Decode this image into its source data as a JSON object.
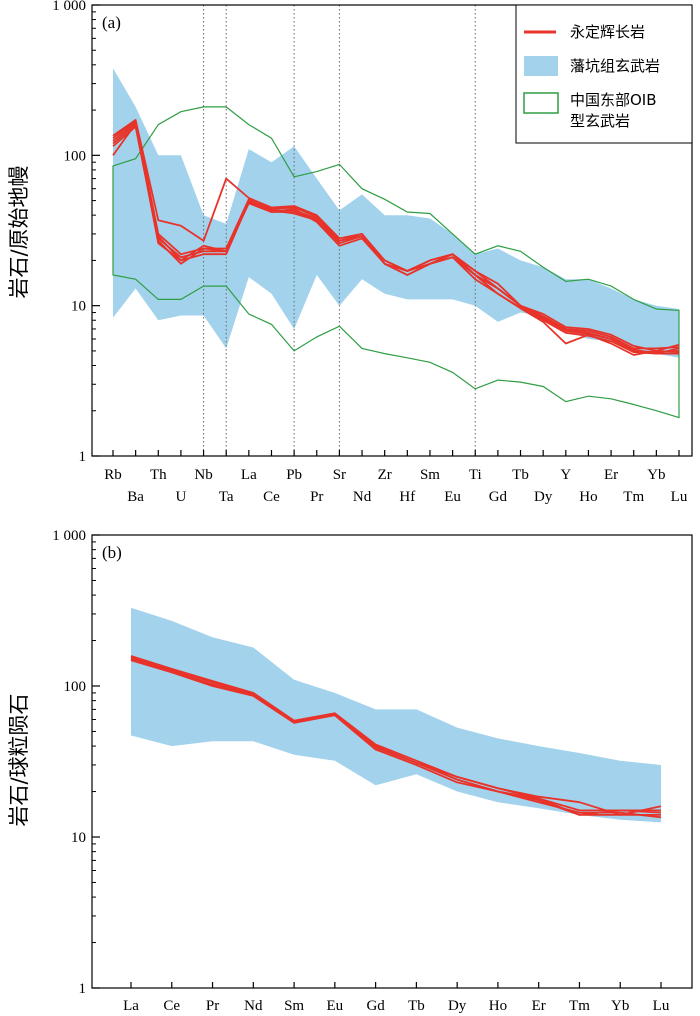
{
  "colors": {
    "gabbro": "#e8332a",
    "basalt": "#a3d3ec",
    "oib": "#2f9e44",
    "axis": "#000000",
    "grid": "#666666"
  },
  "legend": {
    "gabbro": "永定辉长岩",
    "basalt": "藩坑组玄武岩",
    "oib_line1": "中国东部OIB",
    "oib_line2": "型玄武岩"
  },
  "chart_data": [
    {
      "type": "line",
      "panel_label": "(a)",
      "ylabel": "岩石/原始地幔",
      "yscale": "log",
      "ylim": [
        1,
        1000
      ],
      "ytick_labels": [
        "1",
        "10",
        "100",
        "1 000"
      ],
      "categories": [
        "Rb",
        "Ba",
        "Th",
        "U",
        "Nb",
        "Ta",
        "La",
        "Ce",
        "Pb",
        "Pr",
        "Sr",
        "Nd",
        "Zr",
        "Hf",
        "Sm",
        "Eu",
        "Ti",
        "Gd",
        "Tb",
        "Dy",
        "Y",
        "Ho",
        "Er",
        "Tm",
        "Yb",
        "Lu"
      ],
      "dotted_reference_lines": [
        "Nb",
        "Ta",
        "Pb",
        "Sr",
        "Ti"
      ],
      "series": [
        {
          "name": "永定辉长岩",
          "kind": "lines",
          "lines": [
            [
              125,
              165,
              28,
              21,
              23,
              23,
              50,
              44,
              45,
              39,
              27,
              29,
              20,
              17,
              19,
              22,
              16,
              13,
              10,
              8.5,
              7,
              6.8,
              6.2,
              5.2,
              5.2,
              5.3
            ],
            [
              130,
              170,
              30,
              22,
              24,
              24,
              51,
              43,
              43,
              38,
              27,
              30,
              19,
              17,
              20,
              22,
              17,
              13,
              10,
              8.2,
              6.8,
              6.5,
              6,
              5,
              4.9,
              5
            ],
            [
              120,
              160,
              26,
              20,
              22,
              22,
              49,
              42,
              42,
              37,
              26,
              29,
              19,
              16,
              19,
              21,
              16,
              12,
              9.7,
              8,
              6.6,
              6.3,
              5.8,
              4.9,
              4.8,
              4.8
            ],
            [
              135,
              172,
              37,
              34,
              27,
              70,
              52,
              45,
              46,
              40,
              28,
              30,
              20,
              17,
              20,
              22,
              17,
              14,
              10,
              8.8,
              7.2,
              7,
              6.4,
              5.4,
              5,
              5.5
            ],
            [
              115,
              155,
              27,
              19,
              24,
              23,
              48,
              42,
              44,
              36,
              25,
              28,
              19,
              16,
              19,
              21,
              15,
              12,
              9.6,
              7.8,
              5.6,
              6.4,
              5.6,
              4.7,
              5,
              4.9
            ],
            [
              100,
              162,
              29,
              20,
              25,
              23,
              50,
              43,
              41,
              37,
              27,
              29,
              19,
              17,
              19,
              22,
              16,
              13,
              10,
              8.3,
              6.9,
              6.6,
              6,
              5.1,
              4.8,
              5.2
            ]
          ]
        },
        {
          "name": "藩坑组玄武岩",
          "kind": "band",
          "upper": [
            380,
            210,
            100,
            100,
            40,
            35,
            110,
            90,
            115,
            70,
            43,
            55,
            40,
            40,
            38,
            30,
            22,
            24,
            20,
            18,
            15,
            15,
            13,
            11,
            10,
            9.5
          ],
          "lower": [
            8.3,
            13,
            8,
            8.6,
            8.6,
            5.2,
            15.5,
            12,
            7,
            16,
            10,
            15,
            12,
            11,
            11,
            11,
            10,
            7.8,
            9,
            8.5,
            6.8,
            6,
            5.8,
            5,
            4.8,
            4.5
          ]
        },
        {
          "name": "中国东部OIB型玄武岩",
          "kind": "envelope",
          "upper": [
            85,
            95,
            160,
            195,
            210,
            210,
            160,
            130,
            72,
            78,
            87,
            60,
            51,
            42,
            41,
            30,
            22,
            25,
            23,
            18,
            14.5,
            15,
            13.5,
            11,
            9.5,
            9.3
          ],
          "lower": [
            16,
            15,
            11,
            11,
            13.5,
            13.5,
            8.8,
            7.5,
            5,
            6.2,
            7.3,
            5.2,
            4.8,
            4.5,
            4.2,
            3.6,
            2.8,
            3.2,
            3.1,
            2.9,
            2.3,
            2.5,
            2.4,
            2.2,
            2,
            1.8
          ]
        }
      ]
    },
    {
      "type": "line",
      "panel_label": "(b)",
      "ylabel": "岩石/球粒陨石",
      "yscale": "log",
      "ylim": [
        1,
        1000
      ],
      "ytick_labels": [
        "1",
        "10",
        "100",
        "1 000"
      ],
      "categories": [
        "La",
        "Ce",
        "Pr",
        "Nd",
        "Sm",
        "Eu",
        "Gd",
        "Tb",
        "Dy",
        "Ho",
        "Er",
        "Tm",
        "Yb",
        "Lu"
      ],
      "series": [
        {
          "name": "永定辉长岩",
          "kind": "lines",
          "lines": [
            [
              155,
              128,
              106,
              88,
              58,
              65,
              40,
              31,
              24,
              20,
              18,
              15,
              15,
              14.5
            ],
            [
              150,
              125,
              103,
              87,
              58,
              65,
              39,
              31,
              25,
              21,
              18,
              14,
              14,
              14
            ],
            [
              148,
              123,
              100,
              86,
              57,
              64,
              38,
              30,
              23,
              20,
              17,
              14.5,
              14.5,
              13.5
            ],
            [
              158,
              130,
              108,
              90,
              59,
              66,
              41,
              32,
              25,
              21,
              18.5,
              17,
              14,
              16
            ],
            [
              152,
              126,
              102,
              87,
              58,
              65,
              39,
              31,
              24,
              20,
              17.5,
              14,
              15,
              15
            ]
          ]
        },
        {
          "name": "藩坑组玄武岩",
          "kind": "band",
          "upper": [
            330,
            270,
            210,
            180,
            110,
            90,
            70,
            70,
            53,
            45,
            40,
            36,
            32,
            30
          ],
          "lower": [
            47,
            40,
            43,
            43,
            35,
            32,
            22,
            26,
            20,
            17,
            15.5,
            14,
            13,
            12.5
          ]
        }
      ]
    }
  ]
}
